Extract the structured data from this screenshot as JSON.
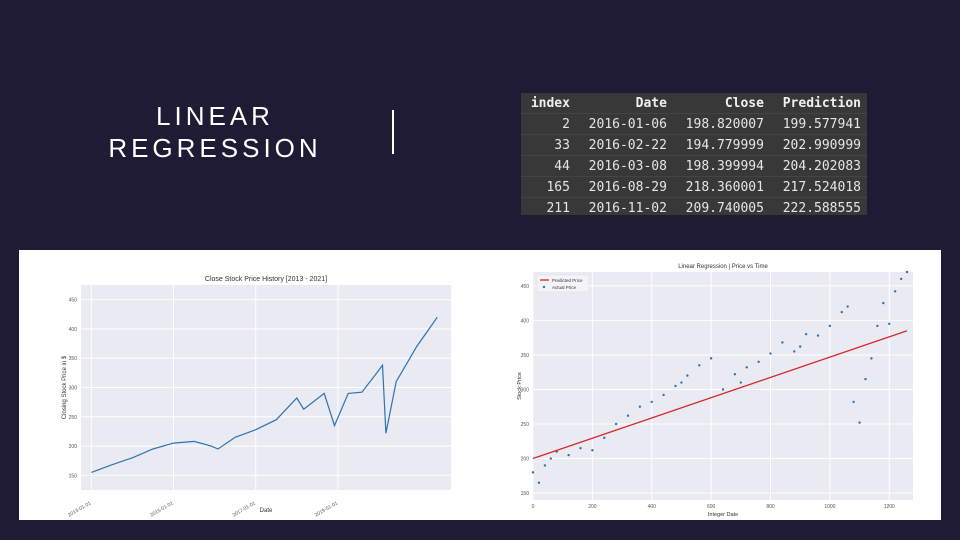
{
  "slide": {
    "title_lines": [
      "LINEAR",
      "REGRESSION"
    ]
  },
  "table": {
    "columns": [
      "index",
      "Date",
      "Close",
      "Prediction"
    ],
    "rows": [
      [
        "2",
        "2016-01-06",
        "198.820007",
        "199.577941"
      ],
      [
        "33",
        "2016-02-22",
        "194.779999",
        "202.990999"
      ],
      [
        "44",
        "2016-03-08",
        "198.399994",
        "204.202083"
      ],
      [
        "165",
        "2016-08-29",
        "218.360001",
        "217.524018"
      ],
      [
        "211",
        "2016-11-02",
        "209.740005",
        "222.588555"
      ]
    ]
  },
  "chart_data": [
    {
      "type": "line",
      "title": "Close Stock Price History [2013 - 2021]",
      "xlabel": "Date",
      "ylabel": "Closing Stock Price in $",
      "x_ticks": [
        "2013-01-01",
        "2015-01-01",
        "2017-01-01",
        "2019-01-01"
      ],
      "y_ticks": [
        150,
        200,
        250,
        300,
        350,
        400,
        450
      ],
      "ylim": [
        125,
        475
      ],
      "series_color": "#2a74b5",
      "series": [
        {
          "x": [
            "2013-01",
            "2013-07",
            "2014-01",
            "2014-07",
            "2015-01",
            "2015-07",
            "2015-12",
            "2016-02",
            "2016-07",
            "2017-01",
            "2017-07",
            "2018-01",
            "2018-03",
            "2018-09",
            "2018-12",
            "2019-04",
            "2019-08",
            "2020-01",
            "2020-02",
            "2020-03",
            "2020-06",
            "2020-09",
            "2020-12",
            "2021-03",
            "2021-06"
          ],
          "y": [
            155,
            168,
            180,
            195,
            205,
            208,
            200,
            195,
            215,
            228,
            245,
            282,
            263,
            290,
            235,
            290,
            292,
            330,
            338,
            222,
            310,
            340,
            370,
            395,
            420
          ]
        }
      ]
    },
    {
      "type": "scatter",
      "title": "Linear Regression | Price vs Time",
      "xlabel": "Integer Date",
      "ylabel": "Stock Price",
      "legend": [
        "Predicted Price",
        "Actual Price"
      ],
      "legend_position": "top-left",
      "x_ticks": [
        0,
        200,
        400,
        600,
        800,
        1000,
        1200
      ],
      "y_ticks": [
        150,
        200,
        250,
        300,
        350,
        400,
        450
      ],
      "xlim": [
        0,
        1280
      ],
      "ylim": [
        140,
        470
      ],
      "regression_color": "#d62728",
      "actual_color": "#2a74b5",
      "regression_line": {
        "x": [
          0,
          1260
        ],
        "y": [
          200,
          385
        ]
      },
      "actual_points": {
        "x": [
          0,
          20,
          40,
          60,
          80,
          120,
          160,
          200,
          240,
          280,
          320,
          360,
          400,
          440,
          480,
          500,
          520,
          560,
          600,
          640,
          680,
          700,
          720,
          760,
          800,
          840,
          880,
          900,
          920,
          960,
          1000,
          1040,
          1060,
          1080,
          1100,
          1120,
          1140,
          1160,
          1180,
          1200,
          1220,
          1240,
          1260
        ],
        "y": [
          180,
          165,
          190,
          200,
          210,
          205,
          215,
          212,
          230,
          250,
          262,
          275,
          282,
          292,
          305,
          310,
          320,
          335,
          345,
          300,
          322,
          310,
          332,
          340,
          352,
          368,
          355,
          362,
          380,
          378,
          392,
          412,
          420,
          282,
          252,
          315,
          345,
          392,
          425,
          395,
          442,
          460,
          470
        ]
      }
    }
  ]
}
